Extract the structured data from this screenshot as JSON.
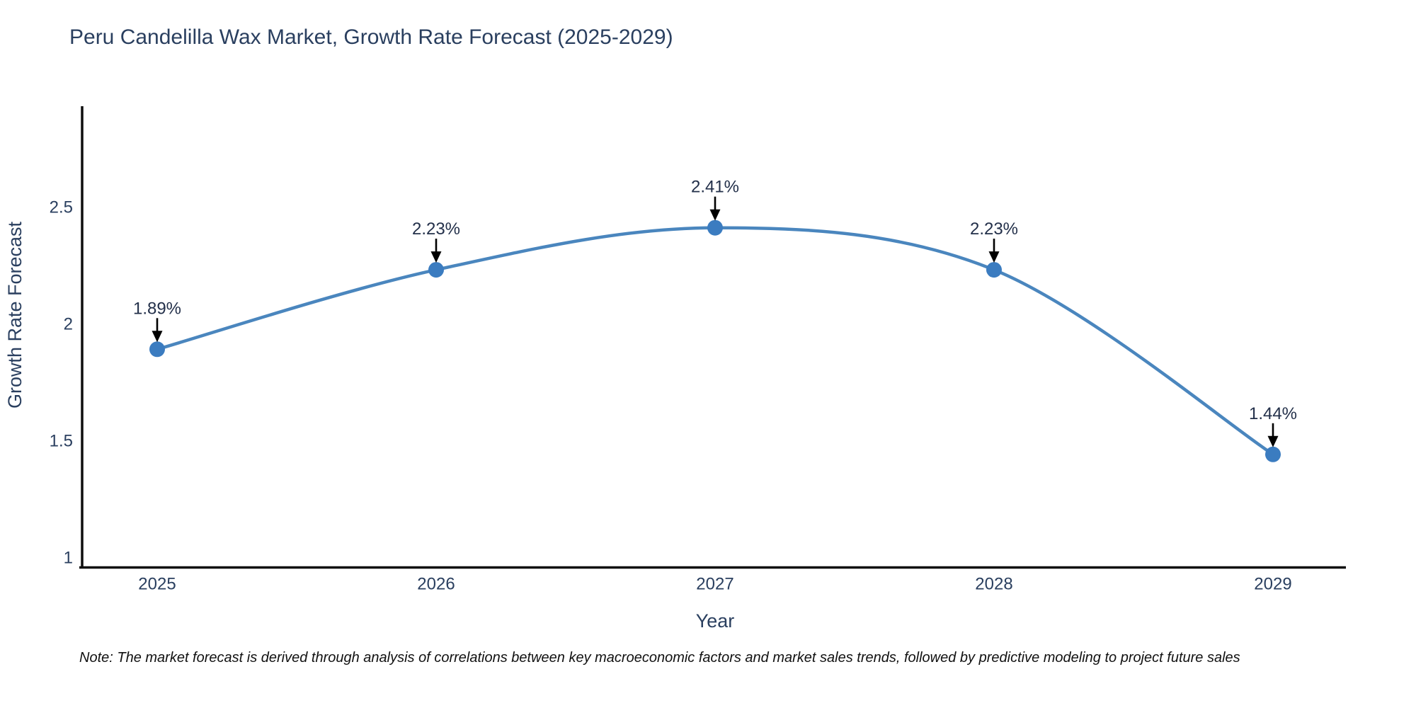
{
  "title": "Peru Candelilla Wax Market, Growth Rate Forecast (2025-2029)",
  "note": "Note: The market forecast is derived through analysis of correlations between key macroeconomic factors and market sales trends, followed by predictive modeling to project future sales",
  "chart_data": {
    "type": "line",
    "title": "Peru Candelilla Wax Market, Growth Rate Forecast (2025-2029)",
    "xlabel": "Year",
    "ylabel": "Growth Rate Forecast",
    "x": [
      2025,
      2026,
      2027,
      2028,
      2029
    ],
    "y": [
      1.89,
      2.23,
      2.41,
      2.23,
      1.44
    ],
    "point_labels": [
      "1.89%",
      "2.23%",
      "2.41%",
      "2.23%",
      "1.44%"
    ],
    "xtick_labels": [
      "2025",
      "2026",
      "2027",
      "2028",
      "2029"
    ],
    "ytick_values": [
      1,
      1.5,
      2,
      2.5
    ],
    "ytick_labels": [
      "1",
      "1.5",
      "2",
      "2.5"
    ],
    "ylim": [
      0.96,
      2.93
    ],
    "line_shape": "spline",
    "grid": false,
    "legend": "none",
    "annotation_style": "value label with black arrow pointing down to each marker",
    "colors": {
      "line": "#4a86be",
      "marker": "#3b7cc0",
      "arrow": "#000000",
      "axis": "#0d0d0d",
      "text": "#2a3f5f"
    }
  }
}
